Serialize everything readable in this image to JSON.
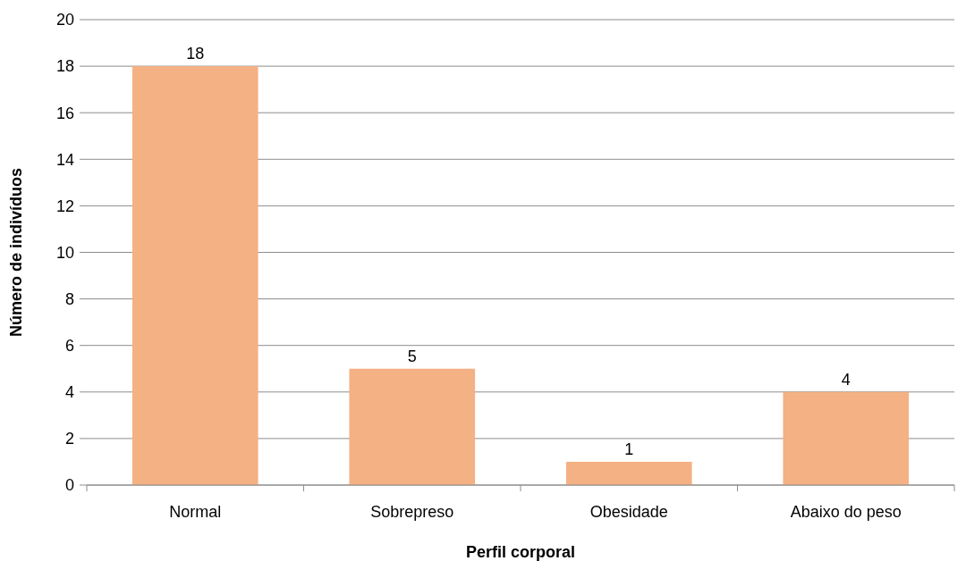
{
  "chart_data": {
    "type": "bar",
    "xlabel": "Perfil corporal",
    "ylabel": "Número de indivíduos",
    "categories": [
      "Normal",
      "Sobrepreso",
      "Obesidade",
      "Abaixo do peso"
    ],
    "values": [
      18,
      5,
      1,
      4
    ],
    "color": "#f4b183",
    "ylim": [
      0,
      20
    ],
    "yticks": [
      0,
      2,
      4,
      6,
      8,
      10,
      12,
      14,
      16,
      18,
      20
    ],
    "grid": "y",
    "data_labels": true
  }
}
